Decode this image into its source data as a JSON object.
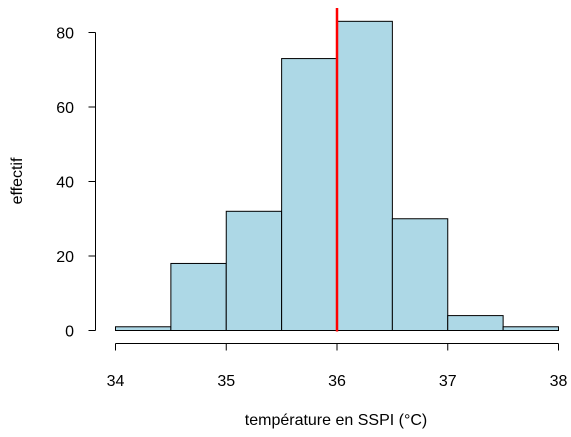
{
  "chart_data": {
    "type": "bar",
    "title": "",
    "xlabel": "température en SSPI (°C)",
    "ylabel": "effectif",
    "bins": [
      {
        "from": 34.0,
        "to": 34.5,
        "count": 1
      },
      {
        "from": 34.5,
        "to": 35.0,
        "count": 18
      },
      {
        "from": 35.0,
        "to": 35.5,
        "count": 32
      },
      {
        "from": 35.5,
        "to": 36.0,
        "count": 73
      },
      {
        "from": 36.0,
        "to": 36.5,
        "count": 83
      },
      {
        "from": 36.5,
        "to": 37.0,
        "count": 30
      },
      {
        "from": 37.0,
        "to": 37.5,
        "count": 4
      },
      {
        "from": 37.5,
        "to": 38.0,
        "count": 1
      }
    ],
    "xlim": [
      34,
      38
    ],
    "ylim": [
      0,
      83
    ],
    "xticks": [
      "34",
      "35",
      "36",
      "37",
      "38"
    ],
    "yticks": [
      "0",
      "20",
      "40",
      "60",
      "80"
    ],
    "vline": {
      "x": 36,
      "color": "#ff0000"
    },
    "bar_color": "#add8e6",
    "grid": false,
    "legend": "none"
  }
}
